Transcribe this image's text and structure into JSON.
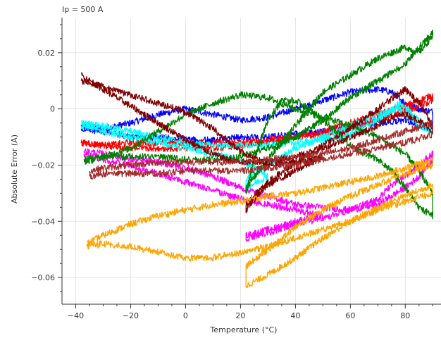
{
  "chart_data": {
    "type": "line",
    "title": "Ip = 500 A",
    "xlabel": "Temperature (°C)",
    "ylabel": "Absolute Error (A)",
    "xlim": [
      -45,
      93
    ],
    "ylim": [
      -0.0695,
      0.0325
    ],
    "x_ticks": [
      -40,
      -20,
      0,
      20,
      40,
      60,
      80
    ],
    "y_ticks": [
      0.02,
      0,
      -0.02,
      -0.04,
      -0.06
    ],
    "x_tick_labels": [
      "−40",
      "−20",
      "0",
      "20",
      "40",
      "60",
      "80"
    ],
    "y_tick_labels": [
      "0.02",
      "0",
      "−0.02",
      "−0.04",
      "−0.06"
    ],
    "grid": true,
    "series": [
      {
        "color": "#0000ff",
        "x": [
          -38,
          -30,
          -20,
          -10,
          0,
          10,
          20,
          30,
          40,
          50,
          60,
          70,
          75,
          80,
          85,
          90,
          90,
          85,
          80,
          70,
          60,
          50,
          40,
          30,
          20,
          10,
          0,
          -10,
          -20,
          -30,
          -38
        ],
        "y": [
          -0.006,
          -0.007,
          -0.005,
          -0.002,
          0.0,
          -0.002,
          -0.004,
          -0.003,
          0.0,
          0.003,
          0.006,
          0.007,
          0.006,
          0.002,
          0.0,
          -0.001,
          -0.006,
          -0.006,
          -0.004,
          -0.005,
          -0.006,
          -0.008,
          -0.009,
          -0.01,
          -0.01,
          -0.011,
          -0.011,
          -0.01,
          -0.01,
          -0.008,
          -0.007
        ]
      },
      {
        "color": "#ff0000",
        "x": [
          -38,
          -30,
          -20,
          -10,
          0,
          10,
          20,
          30,
          40,
          50,
          60,
          70,
          80,
          90,
          90,
          80,
          70,
          60,
          50,
          40,
          30,
          20,
          10,
          0,
          -10,
          -20,
          -30,
          -38
        ],
        "y": [
          -0.012,
          -0.013,
          -0.012,
          -0.012,
          -0.012,
          -0.012,
          -0.012,
          -0.011,
          -0.01,
          -0.008,
          -0.005,
          -0.002,
          0.001,
          0.005,
          0.003,
          -0.001,
          -0.004,
          -0.007,
          -0.009,
          -0.01,
          -0.012,
          -0.013,
          -0.014,
          -0.014,
          -0.014,
          -0.014,
          -0.013,
          -0.012
        ]
      },
      {
        "color": "#00ffff",
        "x": [
          -38,
          -30,
          -20,
          -10,
          0,
          10,
          20,
          30,
          40,
          50,
          60,
          70,
          78,
          85,
          90,
          90,
          85,
          78,
          70,
          60,
          50,
          40,
          30,
          22,
          22,
          30,
          20,
          10,
          0,
          -10,
          -20,
          -30,
          -38
        ],
        "y": [
          -0.005,
          -0.006,
          -0.008,
          -0.01,
          -0.012,
          -0.013,
          -0.013,
          -0.013,
          -0.012,
          -0.011,
          -0.009,
          -0.004,
          0.002,
          -0.004,
          -0.008,
          -0.008,
          -0.006,
          0.0,
          -0.002,
          -0.006,
          -0.01,
          -0.014,
          -0.02,
          -0.025,
          -0.028,
          -0.024,
          -0.018,
          -0.016,
          -0.014,
          -0.012,
          -0.01,
          -0.008,
          -0.006
        ]
      },
      {
        "color": "#ff00ff",
        "x": [
          -37,
          -30,
          -20,
          -10,
          0,
          10,
          20,
          30,
          40,
          50,
          60,
          70,
          80,
          85,
          90,
          90,
          85,
          80,
          75,
          70,
          60,
          50,
          40,
          30,
          22,
          22,
          30,
          40,
          50,
          40,
          30,
          20,
          10,
          0,
          -10,
          -20,
          -30,
          -37
        ],
        "y": [
          -0.015,
          -0.016,
          -0.018,
          -0.019,
          -0.021,
          -0.024,
          -0.028,
          -0.031,
          -0.034,
          -0.035,
          -0.036,
          -0.034,
          -0.028,
          -0.024,
          -0.018,
          -0.016,
          -0.02,
          -0.024,
          -0.027,
          -0.032,
          -0.036,
          -0.039,
          -0.041,
          -0.044,
          -0.046,
          -0.045,
          -0.043,
          -0.04,
          -0.038,
          -0.036,
          -0.034,
          -0.032,
          -0.029,
          -0.026,
          -0.023,
          -0.02,
          -0.018,
          -0.016
        ]
      },
      {
        "color": "#008000",
        "x": [
          -37,
          -30,
          -20,
          -10,
          0,
          10,
          20,
          30,
          40,
          50,
          60,
          70,
          80,
          85,
          90,
          90,
          85,
          80,
          75,
          70,
          65,
          60,
          55,
          50,
          45,
          40,
          35,
          30,
          25,
          22,
          22,
          30,
          40,
          50,
          60,
          70,
          80,
          85,
          90,
          90,
          85,
          80,
          70,
          60,
          50,
          40,
          30,
          20,
          10,
          0,
          -10,
          -20,
          -30,
          -37
        ],
        "y": [
          -0.019,
          -0.017,
          -0.014,
          -0.008,
          -0.002,
          0.002,
          0.005,
          0.004,
          0.0,
          -0.003,
          -0.006,
          -0.01,
          -0.016,
          -0.022,
          -0.03,
          -0.038,
          -0.035,
          -0.028,
          -0.022,
          -0.018,
          -0.016,
          -0.013,
          -0.008,
          -0.004,
          0.0,
          0.003,
          0.003,
          -0.004,
          -0.018,
          -0.03,
          -0.028,
          -0.018,
          -0.006,
          0.006,
          0.012,
          0.018,
          0.022,
          0.02,
          0.026,
          0.027,
          0.022,
          0.016,
          0.01,
          0.004,
          -0.004,
          -0.01,
          -0.014,
          -0.017,
          -0.018,
          -0.018,
          -0.017,
          -0.017,
          -0.017,
          -0.018
        ]
      },
      {
        "color": "#800000",
        "x": [
          -38,
          -30,
          -20,
          -10,
          0,
          10,
          15,
          20,
          25,
          30,
          40,
          50,
          60,
          70,
          75,
          80,
          85,
          90,
          88,
          85,
          80,
          70,
          60,
          50,
          40,
          30,
          22,
          22,
          25,
          30,
          40,
          50,
          40,
          30,
          20,
          10,
          0,
          -10,
          -20,
          -30,
          -38
        ],
        "y": [
          0.012,
          0.007,
          0.001,
          -0.005,
          -0.011,
          -0.016,
          -0.018,
          -0.019,
          -0.019,
          -0.019,
          -0.017,
          -0.014,
          -0.01,
          -0.006,
          -0.003,
          -0.002,
          -0.004,
          -0.008,
          -0.002,
          0.002,
          0.007,
          0.0,
          -0.007,
          -0.013,
          -0.019,
          -0.026,
          -0.034,
          -0.036,
          -0.032,
          -0.027,
          -0.022,
          -0.017,
          -0.019,
          -0.02,
          -0.015,
          -0.007,
          -0.001,
          0.002,
          0.005,
          0.008,
          0.01
        ]
      },
      {
        "color": "#a52a2a",
        "x": [
          -35,
          -30,
          -20,
          -10,
          0,
          10,
          20,
          30,
          40,
          50,
          60,
          70,
          80,
          90,
          90,
          80,
          70,
          60,
          50,
          40,
          30,
          20,
          10,
          0,
          -10,
          -20,
          -30,
          -35
        ],
        "y": [
          -0.022,
          -0.021,
          -0.02,
          -0.019,
          -0.019,
          -0.019,
          -0.019,
          -0.018,
          -0.017,
          -0.016,
          -0.014,
          -0.011,
          -0.008,
          -0.005,
          -0.009,
          -0.012,
          -0.014,
          -0.016,
          -0.018,
          -0.02,
          -0.021,
          -0.022,
          -0.022,
          -0.022,
          -0.023,
          -0.023,
          -0.023,
          -0.024
        ]
      },
      {
        "color": "#ffa500",
        "x": [
          -36,
          -30,
          -20,
          -10,
          0,
          10,
          20,
          30,
          40,
          50,
          60,
          70,
          80,
          90,
          90,
          80,
          70,
          60,
          50,
          40,
          30,
          22,
          22,
          30,
          40,
          50,
          60,
          70,
          80,
          90,
          90,
          80,
          70,
          60,
          50,
          40,
          30,
          20,
          10,
          0,
          -10,
          -20,
          -30,
          -36
        ],
        "y": [
          -0.048,
          -0.045,
          -0.041,
          -0.038,
          -0.036,
          -0.034,
          -0.033,
          -0.031,
          -0.03,
          -0.028,
          -0.026,
          -0.024,
          -0.021,
          -0.018,
          -0.02,
          -0.023,
          -0.027,
          -0.031,
          -0.036,
          -0.042,
          -0.05,
          -0.056,
          -0.063,
          -0.059,
          -0.053,
          -0.046,
          -0.04,
          -0.035,
          -0.031,
          -0.027,
          -0.03,
          -0.033,
          -0.036,
          -0.04,
          -0.043,
          -0.046,
          -0.049,
          -0.051,
          -0.053,
          -0.053,
          -0.051,
          -0.049,
          -0.048,
          -0.049
        ]
      }
    ]
  }
}
